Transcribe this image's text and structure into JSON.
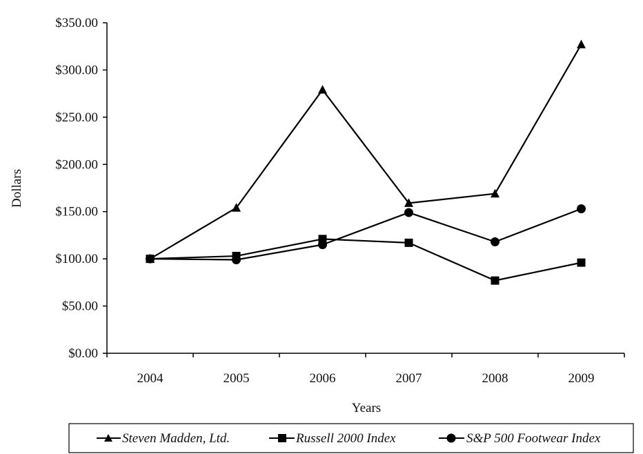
{
  "chart_data": {
    "type": "line",
    "title": "",
    "xlabel": "Years",
    "ylabel": "Dollars",
    "x": [
      "2004",
      "2005",
      "2006",
      "2007",
      "2008",
      "2009"
    ],
    "ylim": [
      0,
      350
    ],
    "yticks": [
      "$0.00",
      "$50.00",
      "$100.00",
      "$150.00",
      "$200.00",
      "$250.00",
      "$300.00",
      "$350.00"
    ],
    "grid": false,
    "legend_position": "bottom",
    "series": [
      {
        "name": "Steven Madden, Ltd.",
        "marker": "triangle",
        "values": [
          100,
          154,
          279,
          159,
          169,
          327
        ]
      },
      {
        "name": "Russell 2000 Index",
        "marker": "square",
        "values": [
          100,
          103,
          121,
          117,
          77,
          96
        ]
      },
      {
        "name": "S&P 500 Footwear Index",
        "marker": "circle",
        "values": [
          100,
          99,
          115,
          149,
          118,
          153
        ]
      }
    ],
    "colors": {
      "line": "#000000",
      "background": "#ffffff"
    }
  }
}
